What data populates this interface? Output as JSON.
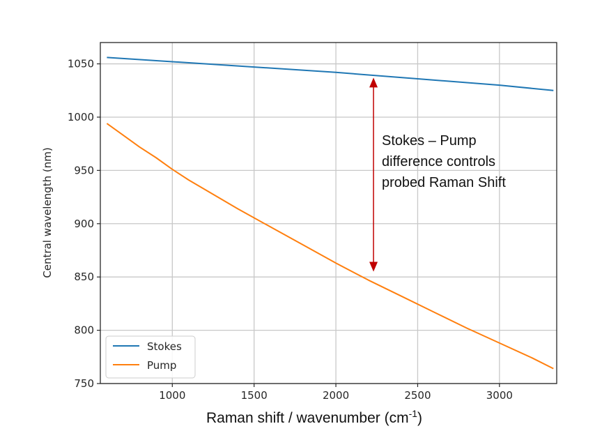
{
  "chart_data": {
    "type": "line",
    "xlabel": "Raman shift / wavenumber (cm",
    "xlabel_sup": "-1",
    "xlabel_close": ")",
    "ylabel": "Central wavelength (nm)",
    "xlim": [
      560,
      3350
    ],
    "ylim": [
      750,
      1070
    ],
    "xticks": [
      1000,
      1500,
      2000,
      2500,
      3000
    ],
    "yticks": [
      750,
      800,
      850,
      900,
      950,
      1000,
      1050
    ],
    "grid": true,
    "legend_position": "lower-left",
    "series": [
      {
        "name": "Stokes",
        "color": "#1f77b4",
        "x": [
          600,
          1000,
          1500,
          2000,
          2500,
          3000,
          3330
        ],
        "y": [
          1056,
          1052,
          1047,
          1042,
          1036,
          1030,
          1025
        ]
      },
      {
        "name": "Pump",
        "color": "#ff7f0e",
        "x": [
          600,
          700,
          800,
          900,
          1000,
          1100,
          1200,
          1400,
          1600,
          1800,
          2000,
          2200,
          2400,
          2600,
          2800,
          3000,
          3200,
          3330
        ],
        "y": [
          994,
          983,
          972,
          962,
          951,
          941,
          932,
          914,
          897,
          880,
          863,
          847,
          832,
          817,
          802,
          788,
          774,
          764
        ]
      }
    ],
    "annotation": {
      "lines": [
        "Stokes  – Pump",
        "difference controls",
        "probed Raman Shift"
      ],
      "arrow_color": "#c00000",
      "arrow_x": 2230,
      "arrow_y_top": 1037,
      "arrow_y_bottom": 855
    }
  }
}
